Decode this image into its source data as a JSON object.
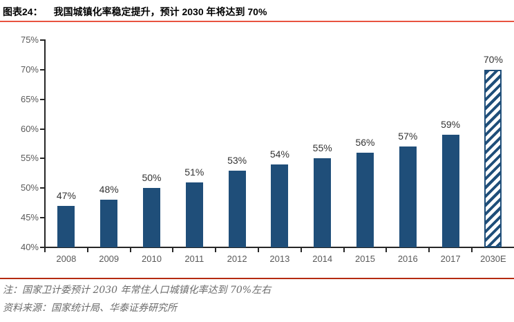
{
  "header": {
    "tag": "图表24：",
    "title": "我国城镇化率稳定提升，预计 2030 年将达到 70%"
  },
  "chart_data": {
    "type": "bar",
    "title": "我国城镇化率稳定提升，预计 2030 年将达到 70%",
    "categories": [
      "2008",
      "2009",
      "2010",
      "2011",
      "2012",
      "2013",
      "2014",
      "2015",
      "2016",
      "2017",
      "2030E"
    ],
    "values": [
      47,
      48,
      50,
      51,
      53,
      54,
      55,
      56,
      57,
      59,
      70
    ],
    "value_labels": [
      "47%",
      "48%",
      "50%",
      "51%",
      "53%",
      "54%",
      "55%",
      "56%",
      "57%",
      "59%",
      "70%"
    ],
    "ylim": [
      40,
      75
    ],
    "ytick_step": 5,
    "ytick_labels": [
      "40%",
      "45%",
      "50%",
      "55%",
      "60%",
      "65%",
      "70%",
      "75%"
    ],
    "grid": false,
    "legend": "none",
    "bar_color": "#1F4E79",
    "forecast_index": 10,
    "forecast_style": "diagonal-hatch"
  },
  "footnotes": {
    "note": "注：国家卫计委预计 2030 年常住人口城镇化率达到 70%左右",
    "source": "资料来源：国家统计局、华泰证券研究所"
  },
  "colors": {
    "title_text": "#000000",
    "accent_rule_top": "#E8523F",
    "accent_rule_bottom": "#B42B10",
    "bar": "#1F4E79",
    "axis": "#262626",
    "tick_label": "#595959",
    "value_label": "#333333",
    "note_text": "#6B6B6B"
  }
}
